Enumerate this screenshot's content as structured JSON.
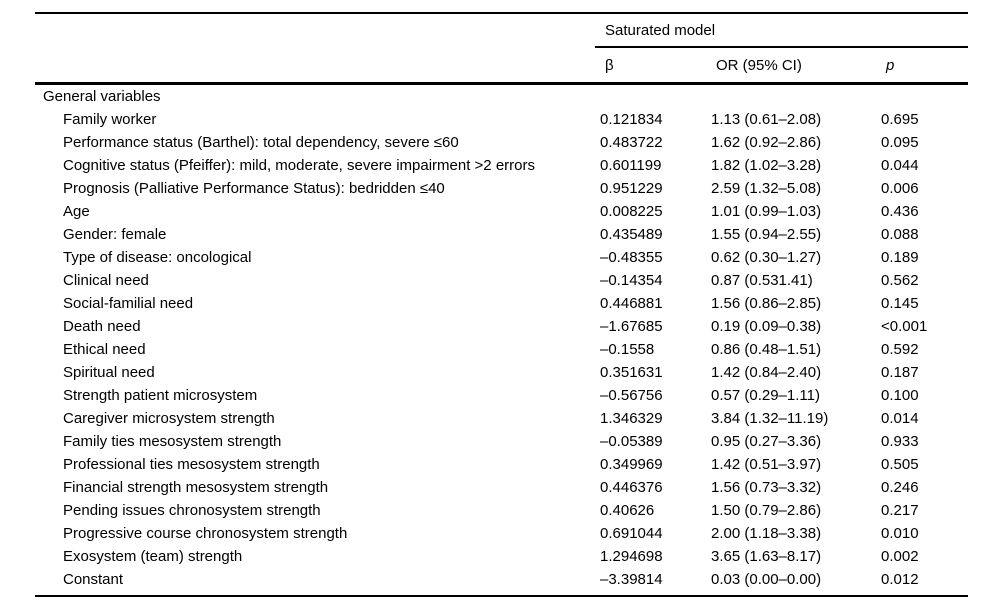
{
  "table": {
    "group_title": "Saturated model",
    "columns": [
      "β",
      "OR (95% CI)",
      "p"
    ],
    "section_label": "General variables",
    "rows": [
      {
        "label": "Family worker",
        "beta": "0.121834",
        "or_ci": "1.13 (0.61–2.08)",
        "p": "0.695"
      },
      {
        "label": "Performance status (Barthel): total dependency, severe ≤60",
        "beta": "0.483722",
        "or_ci": "1.62 (0.92–2.86)",
        "p": "0.095"
      },
      {
        "label": "Cognitive status (Pfeiffer): mild, moderate, severe impairment >2 errors",
        "beta": "0.601199",
        "or_ci": "1.82 (1.02–3.28)",
        "p": "0.044"
      },
      {
        "label": "Prognosis (Palliative Performance Status): bedridden ≤40",
        "beta": "0.951229",
        "or_ci": "2.59 (1.32–5.08)",
        "p": "0.006"
      },
      {
        "label": "Age",
        "beta": "0.008225",
        "or_ci": "1.01 (0.99–1.03)",
        "p": "0.436"
      },
      {
        "label": "Gender: female",
        "beta": "0.435489",
        "or_ci": "1.55 (0.94–2.55)",
        "p": "0.088"
      },
      {
        "label": "Type of disease: oncological",
        "beta": "–0.48355",
        "or_ci": "0.62 (0.30–1.27)",
        "p": "0.189"
      },
      {
        "label": "Clinical need",
        "beta": "–0.14354",
        "or_ci": "0.87 (0.531.41)",
        "p": "0.562"
      },
      {
        "label": "Social-familial need",
        "beta": "0.446881",
        "or_ci": "1.56 (0.86–2.85)",
        "p": "0.145"
      },
      {
        "label": "Death need",
        "beta": "–1.67685",
        "or_ci": "0.19 (0.09–0.38)",
        "p": "<0.001"
      },
      {
        "label": "Ethical need",
        "beta": "–0.1558",
        "or_ci": "0.86 (0.48–1.51)",
        "p": "0.592"
      },
      {
        "label": "Spiritual need",
        "beta": "0.351631",
        "or_ci": "1.42 (0.84–2.40)",
        "p": "0.187"
      },
      {
        "label": "Strength patient microsystem",
        "beta": "–0.56756",
        "or_ci": "0.57 (0.29–1.11)",
        "p": "0.100"
      },
      {
        "label": "Caregiver microsystem strength",
        "beta": "1.346329",
        "or_ci": "3.84 (1.32–11.19)",
        "p": "0.014"
      },
      {
        "label": "Family ties mesosystem strength",
        "beta": "–0.05389",
        "or_ci": "0.95 (0.27–3.36)",
        "p": "0.933"
      },
      {
        "label": "Professional ties mesosystem strength",
        "beta": "0.349969",
        "or_ci": "1.42 (0.51–3.97)",
        "p": "0.505"
      },
      {
        "label": "Financial strength mesosystem strength",
        "beta": "0.446376",
        "or_ci": "1.56 (0.73–3.32)",
        "p": "0.246"
      },
      {
        "label": "Pending issues chronosystem strength",
        "beta": "0.40626",
        "or_ci": "1.50 (0.79–2.86)",
        "p": "0.217"
      },
      {
        "label": "Progressive course chronosystem strength",
        "beta": "0.691044",
        "or_ci": "2.00 (1.18–3.38)",
        "p": "0.010"
      },
      {
        "label": "Exosystem (team) strength",
        "beta": "1.294698",
        "or_ci": "3.65 (1.63–8.17)",
        "p": "0.002"
      },
      {
        "label": "Constant",
        "beta": "–3.39814",
        "or_ci": "0.03 (0.00–0.00)",
        "p": "0.012"
      }
    ]
  }
}
